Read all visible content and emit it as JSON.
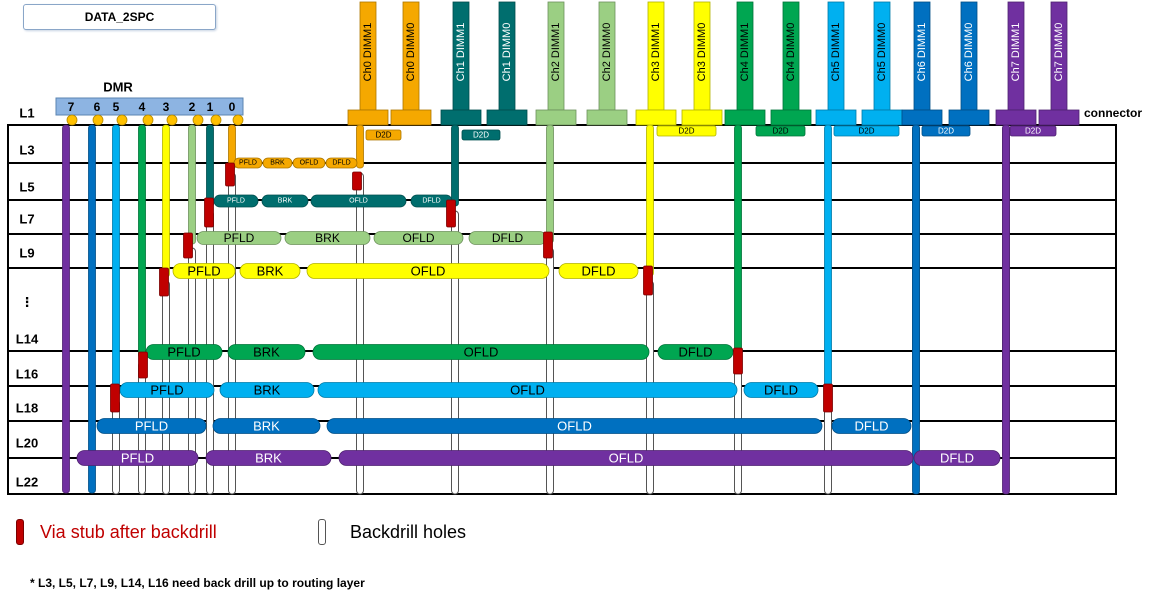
{
  "title": "DATA_2SPC",
  "dmr": {
    "label": "DMR",
    "pins": [
      "7",
      "6",
      "5",
      "4",
      "3",
      "2",
      "1",
      "0"
    ]
  },
  "connector_label": "connector",
  "layer_labels": [
    "L1",
    "L3",
    "L5",
    "L7",
    "L9",
    "⋮",
    "L14",
    "L16",
    "L18",
    "L20",
    "L22"
  ],
  "colors": {
    "ch0": "#f5a800",
    "ch1": "#006e6e",
    "ch2": "#9bcf83",
    "ch3": "#ffff00",
    "ch4": "#00a651",
    "ch5": "#00b0f0",
    "ch6": "#0070c0",
    "ch7": "#7030a0",
    "stub": "#c00000",
    "dmr_box": "#8db4e2",
    "pin": "#ffc000"
  },
  "channels": [
    {
      "key": "ch0",
      "dimm1": "Ch0 DIMM1",
      "dimm0": "Ch0 DIMM0"
    },
    {
      "key": "ch1",
      "dimm1": "Ch1 DIMM1",
      "dimm0": "Ch1 DIMM0"
    },
    {
      "key": "ch2",
      "dimm1": "Ch2 DIMM1",
      "dimm0": "Ch2 DIMM0"
    },
    {
      "key": "ch3",
      "dimm1": "Ch3 DIMM1",
      "dimm0": "Ch3 DIMM0"
    },
    {
      "key": "ch4",
      "dimm1": "Ch4 DIMM1",
      "dimm0": "Ch4 DIMM0"
    },
    {
      "key": "ch5",
      "dimm1": "Ch5 DIMM1",
      "dimm0": "Ch5 DIMM0"
    },
    {
      "key": "ch6",
      "dimm1": "Ch6 DIMM1",
      "dimm0": "Ch6 DIMM0"
    },
    {
      "key": "ch7",
      "dimm1": "Ch7 DIMM1",
      "dimm0": "Ch7 DIMM0"
    }
  ],
  "d2d_label": "D2D",
  "segment_labels": [
    "PFLD",
    "BRK",
    "OFLD",
    "DFLD"
  ],
  "legend": {
    "stub": "Via stub after backdrill",
    "backdrill": "Backdrill holes"
  },
  "footnote": "* L3, L5, L7, L9, L14, L16 need back drill up to routing layer"
}
